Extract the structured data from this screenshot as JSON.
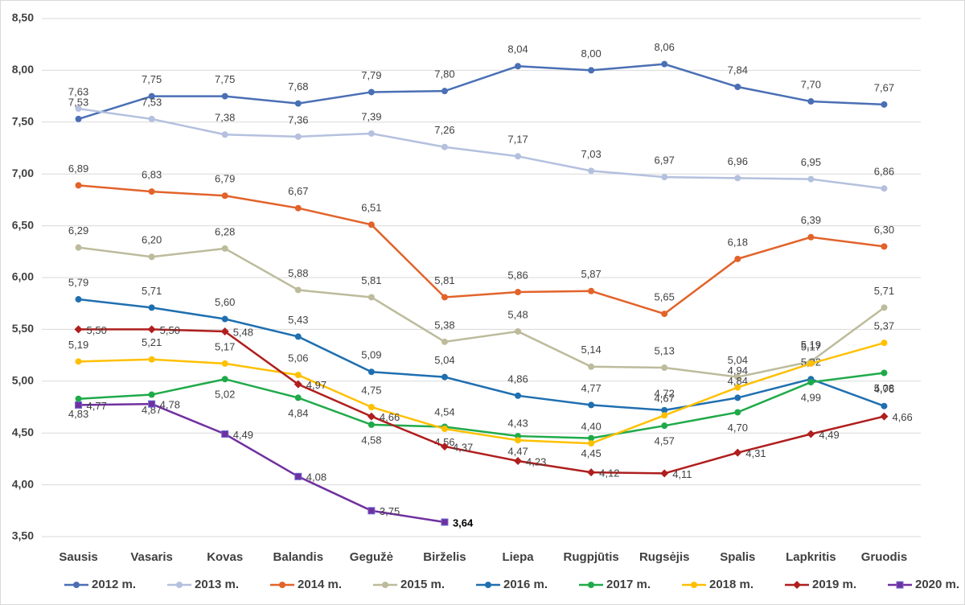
{
  "chart_data": {
    "type": "line",
    "categories": [
      "Sausis",
      "Vasaris",
      "Kovas",
      "Balandis",
      "Gegužė",
      "Birželis",
      "Liepa",
      "Rugpjūtis",
      "Rugsėjis",
      "Spalis",
      "Lapkritis",
      "Gruodis"
    ],
    "ylim": [
      3.5,
      8.5
    ],
    "yticks": [
      {
        "value": 3.5,
        "label": "3,50"
      },
      {
        "value": 4,
        "label": "4,00"
      },
      {
        "value": 4.5,
        "label": "4,50"
      },
      {
        "value": 5,
        "label": "5,00"
      },
      {
        "value": 5.5,
        "label": "5,50"
      },
      {
        "value": 6,
        "label": "6,00"
      },
      {
        "value": 6.5,
        "label": "6,50"
      },
      {
        "value": 7,
        "label": "7,00"
      },
      {
        "value": 7.5,
        "label": "7,50"
      },
      {
        "value": 8,
        "label": "8,00"
      },
      {
        "value": 8.5,
        "label": "8,50"
      }
    ],
    "grid": true,
    "legend": "bottom",
    "series": [
      {
        "name": "2012 m.",
        "color": "#4a6fb5",
        "marker": "circle",
        "values": [
          7.53,
          7.75,
          7.75,
          7.68,
          7.79,
          7.8,
          8.04,
          8.0,
          8.06,
          7.84,
          7.7,
          7.67
        ],
        "value_labels": [
          "7,53",
          "7,75",
          "7,75",
          "7,68",
          "7,79",
          "7,80",
          "8,04",
          "8,00",
          "8,06",
          "7,84",
          "7,70",
          "7,67"
        ]
      },
      {
        "name": "2013 m.",
        "color": "#b4c0de",
        "marker": "circle",
        "values": [
          7.63,
          7.53,
          7.38,
          7.36,
          7.39,
          7.26,
          7.17,
          7.03,
          6.97,
          6.96,
          6.95,
          6.86
        ],
        "value_labels": [
          "7,63",
          "7,53",
          "7,38",
          "7,36",
          "7,39",
          "7,26",
          "7,17",
          "7,03",
          "6,97",
          "6,96",
          "6,95",
          "6,86"
        ]
      },
      {
        "name": "2014 m.",
        "color": "#e2632a",
        "marker": "circle",
        "values": [
          6.89,
          6.83,
          6.79,
          6.67,
          6.51,
          5.81,
          5.86,
          5.87,
          5.65,
          6.18,
          6.39,
          6.3
        ],
        "value_labels": [
          "6,89",
          "6,83",
          "6,79",
          "6,67",
          "6,51",
          "5,81",
          "5,86",
          "5,87",
          "5,65",
          "6,18",
          "6,39",
          "6,30"
        ]
      },
      {
        "name": "2015 m.",
        "color": "#bdbb9c",
        "marker": "circle",
        "values": [
          6.29,
          6.2,
          6.28,
          5.88,
          5.81,
          5.38,
          5.48,
          5.14,
          5.13,
          5.04,
          5.19,
          5.71
        ],
        "value_labels": [
          "6,29",
          "6,20",
          "6,28",
          "5,88",
          "5,81",
          "5,38",
          "5,48",
          "5,14",
          "5,13",
          "5,04",
          "5,19",
          "5,71"
        ]
      },
      {
        "name": "2016 m.",
        "color": "#1f6fb0",
        "marker": "circle",
        "values": [
          5.79,
          5.71,
          5.6,
          5.43,
          5.09,
          5.04,
          4.86,
          4.77,
          4.72,
          4.84,
          5.02,
          4.76
        ],
        "value_labels": [
          "5,79",
          "5,71",
          "5,60",
          "5,43",
          "5,09",
          "5,04",
          "4,86",
          "4,77",
          "4,72",
          "4,84",
          "5,02",
          "4,76"
        ]
      },
      {
        "name": "2017 m.",
        "color": "#1faa4a",
        "marker": "circle",
        "values": [
          4.83,
          4.87,
          5.02,
          4.84,
          4.58,
          4.56,
          4.47,
          4.45,
          4.57,
          4.7,
          4.99,
          5.08
        ],
        "value_labels": [
          "4,83",
          "4,87",
          "5,02",
          "4,84",
          "4,58",
          "4,56",
          "4,47",
          "4,45",
          "4,57",
          "4,70",
          "4,99",
          "5,08"
        ]
      },
      {
        "name": "2018 m.",
        "color": "#ffc000",
        "marker": "circle",
        "values": [
          5.19,
          5.21,
          5.17,
          5.06,
          4.75,
          4.54,
          4.43,
          4.4,
          4.67,
          4.94,
          5.17,
          5.37
        ],
        "value_labels": [
          "5,19",
          "5,21",
          "5,17",
          "5,06",
          "4,75",
          "4,54",
          "4,43",
          "4,40",
          "4,67",
          "4,94",
          "5,17",
          "5,37"
        ]
      },
      {
        "name": "2019 m.",
        "color": "#b01e1e",
        "marker": "diamond",
        "values": [
          5.5,
          5.5,
          5.48,
          4.97,
          4.66,
          4.37,
          4.23,
          4.12,
          4.11,
          4.31,
          4.49,
          4.66
        ],
        "value_labels": [
          "5,50",
          "5,50",
          "5,48",
          "4,97",
          "4,66",
          "4,37",
          "4,23",
          "4,12",
          "4,11",
          "4,31",
          "4,49",
          "4,66"
        ]
      },
      {
        "name": "2020 m.",
        "color": "#7030a0",
        "marker": "square",
        "values": [
          4.77,
          4.78,
          4.49,
          4.08,
          3.75,
          3.64,
          null,
          null,
          null,
          null,
          null,
          null
        ],
        "value_labels": [
          "4,77",
          "4,78",
          "4,49",
          "4,08",
          "3,75",
          "3,64",
          null,
          null,
          null,
          null,
          null,
          null
        ]
      }
    ]
  }
}
